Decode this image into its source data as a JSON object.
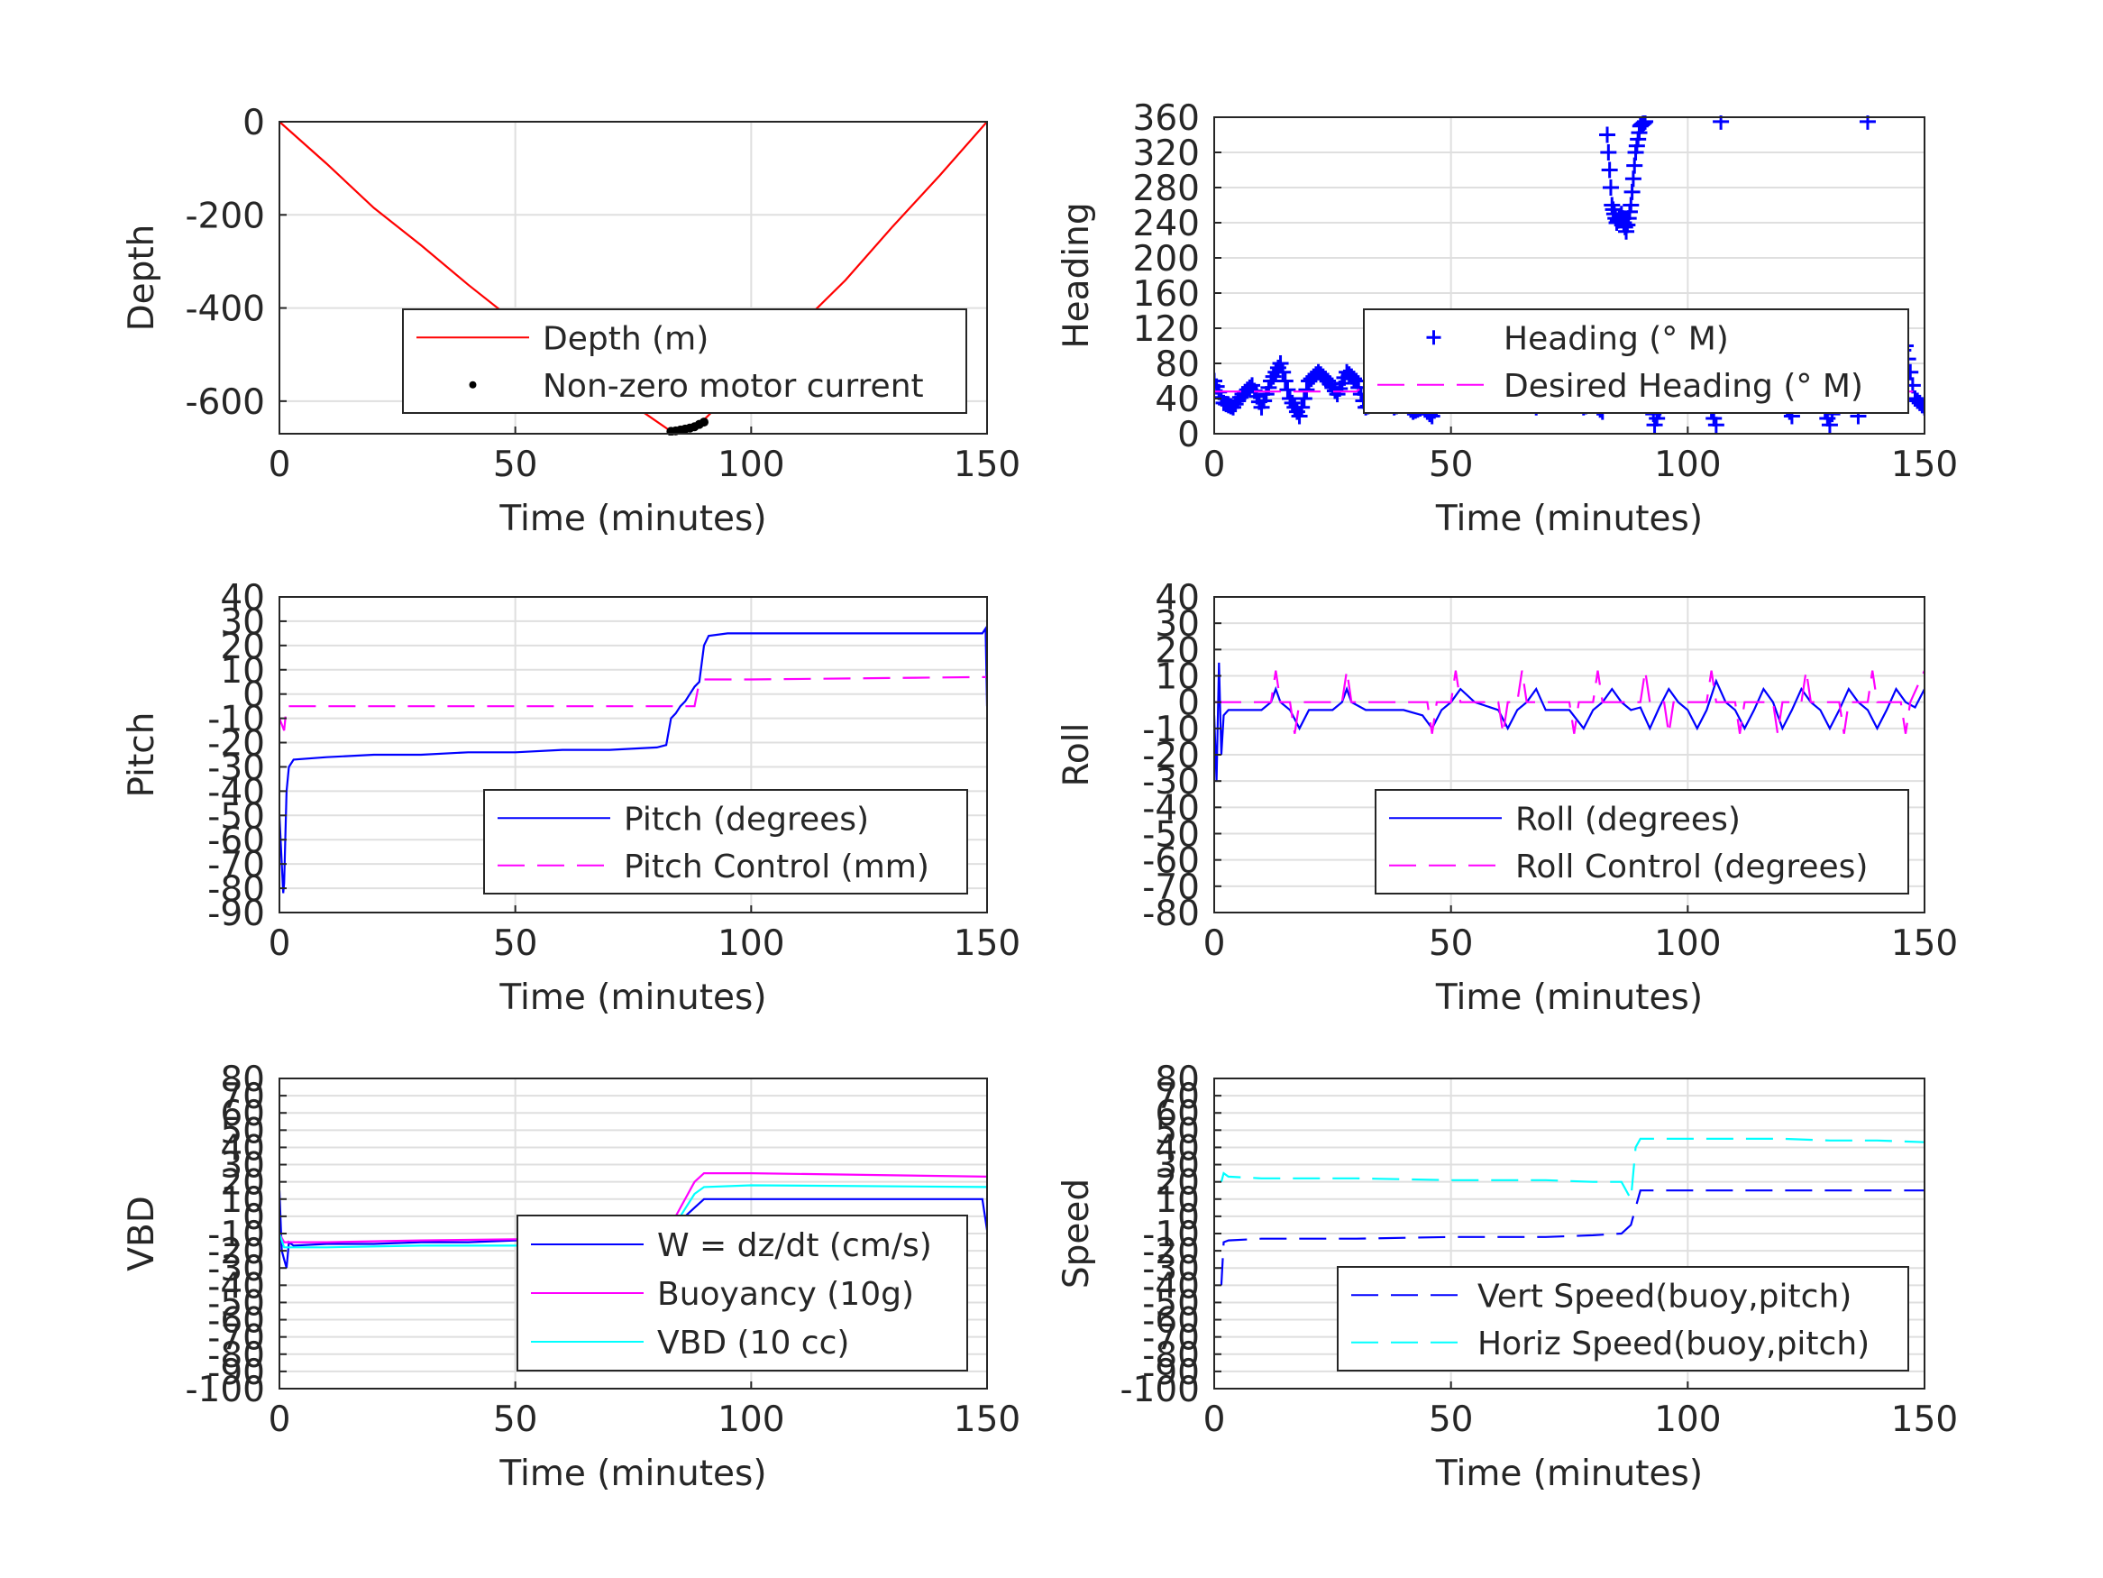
{
  "chart_data": [
    {
      "type": "line",
      "xlabel": "Time (minutes)",
      "ylabel": "Depth",
      "xlim": [
        0,
        150
      ],
      "ylim": [
        -670,
        0
      ],
      "xticks": [
        0,
        50,
        100,
        150
      ],
      "yticks": [
        0,
        -200,
        -400,
        -600
      ],
      "yticklabels": [
        "0",
        "-200",
        "-400",
        "-600"
      ],
      "grid": true,
      "legend": "lower-right",
      "series": [
        {
          "name": "Depth (m)",
          "color": "#ff0000",
          "style": "solid",
          "x": [
            0,
            10,
            20,
            30,
            40,
            50,
            60,
            70,
            78,
            83,
            86,
            90,
            100,
            110,
            120,
            130,
            140,
            150
          ],
          "y": [
            0,
            -90,
            -185,
            -265,
            -350,
            -430,
            -505,
            -575,
            -630,
            -665,
            -660,
            -640,
            -540,
            -440,
            -340,
            -225,
            -115,
            0
          ]
        },
        {
          "name": "Non-zero motor current",
          "color": "#000000",
          "style": "dots",
          "x": [
            83,
            84,
            85,
            86,
            87,
            88,
            89,
            90
          ],
          "y": [
            -665,
            -664,
            -662,
            -660,
            -658,
            -655,
            -650,
            -645
          ]
        }
      ]
    },
    {
      "type": "scatter",
      "xlabel": "Time (minutes)",
      "ylabel": "Heading",
      "xlim": [
        0,
        150
      ],
      "ylim": [
        0,
        360
      ],
      "xticks": [
        0,
        50,
        100,
        150
      ],
      "yticks": [
        0,
        40,
        80,
        120,
        160,
        200,
        240,
        280,
        320,
        360
      ],
      "yticklabels": [
        "0",
        "40",
        "80",
        "120",
        "160",
        "200",
        "240",
        "280",
        "320",
        "360"
      ],
      "grid": true,
      "legend": "right",
      "series": [
        {
          "name": "Heading (° M)",
          "color": "#0000ff",
          "style": "plus",
          "x": [
            0,
            2,
            4,
            6,
            8,
            10,
            12,
            14,
            16,
            18,
            20,
            22,
            24,
            26,
            28,
            30,
            32,
            34,
            36,
            38,
            40,
            42,
            44,
            46,
            48,
            50,
            52,
            54,
            56,
            58,
            60,
            62,
            64,
            66,
            68,
            70,
            72,
            74,
            76,
            78,
            80,
            82,
            83,
            84,
            85,
            86,
            87,
            88,
            89,
            90,
            91,
            92,
            93,
            95,
            97,
            99,
            100,
            102,
            104,
            106,
            107,
            110,
            112,
            114,
            116,
            118,
            120,
            122,
            124,
            126,
            128,
            130,
            132,
            134,
            136,
            138,
            140,
            142,
            144,
            146,
            148,
            150
          ],
          "y": [
            60,
            35,
            30,
            45,
            55,
            30,
            60,
            80,
            40,
            20,
            60,
            70,
            60,
            45,
            70,
            60,
            30,
            35,
            40,
            30,
            35,
            25,
            30,
            20,
            45,
            60,
            70,
            50,
            40,
            45,
            35,
            60,
            70,
            40,
            30,
            75,
            55,
            45,
            40,
            30,
            35,
            25,
            340,
            260,
            240,
            250,
            230,
            260,
            320,
            350,
            355,
            60,
            10,
            40,
            80,
            120,
            130,
            80,
            40,
            10,
            355,
            100,
            40,
            60,
            120,
            80,
            40,
            20,
            80,
            100,
            40,
            10,
            60,
            80,
            20,
            355,
            40,
            60,
            80,
            100,
            40,
            30
          ]
        },
        {
          "name": "Desired Heading (° M)",
          "color": "#ff00ff",
          "style": "dash",
          "x": [
            0,
            30,
            31,
            80,
            81,
            150
          ],
          "y": [
            48,
            48,
            52,
            52,
            48,
            48
          ]
        }
      ]
    },
    {
      "type": "line",
      "xlabel": "Time (minutes)",
      "ylabel": "Pitch",
      "xlim": [
        0,
        150
      ],
      "ylim": [
        -90,
        40
      ],
      "xticks": [
        0,
        50,
        100,
        150
      ],
      "yticks": [
        40,
        30,
        20,
        10,
        0,
        -10,
        -20,
        -30,
        -40,
        -50,
        -60,
        -70,
        -80,
        -90
      ],
      "yticklabels": [
        "40",
        "30",
        "20",
        "10",
        "0",
        "-10",
        "-20",
        "-30",
        "-40",
        "-50",
        "-60",
        "-70",
        "-80",
        "-90"
      ],
      "grid": true,
      "legend": "lower-right",
      "series": [
        {
          "name": "Pitch (degrees)",
          "color": "#0000ff",
          "style": "solid",
          "x": [
            0,
            0.5,
            0.8,
            1,
            1.5,
            2,
            3,
            10,
            20,
            30,
            40,
            50,
            60,
            70,
            80,
            82,
            83,
            84,
            85,
            86,
            87,
            88,
            89,
            90,
            91,
            95,
            100,
            110,
            120,
            130,
            140,
            149,
            149.7,
            150
          ],
          "y": [
            -50,
            -70,
            -82,
            -78,
            -40,
            -30,
            -27,
            -26,
            -25,
            -25,
            -24,
            -24,
            -23,
            -23,
            -22,
            -21,
            -10,
            -8,
            -5,
            -3,
            0,
            3,
            5,
            20,
            24,
            25,
            25,
            25,
            25,
            25,
            25,
            25,
            27,
            -5
          ]
        },
        {
          "name": "Pitch Control (mm)",
          "color": "#ff00ff",
          "style": "dash",
          "x": [
            0,
            1,
            1.5,
            2,
            80,
            88,
            89,
            90,
            100,
            150
          ],
          "y": [
            -10,
            -15,
            -5,
            -5,
            -5,
            -5,
            5,
            6,
            6,
            7
          ]
        }
      ]
    },
    {
      "type": "line",
      "xlabel": "Time (minutes)",
      "ylabel": "Roll",
      "xlim": [
        0,
        150
      ],
      "ylim": [
        -80,
        40
      ],
      "xticks": [
        0,
        50,
        100,
        150
      ],
      "yticks": [
        40,
        30,
        20,
        10,
        0,
        -10,
        -20,
        -30,
        -40,
        -50,
        -60,
        -70,
        -80
      ],
      "yticklabels": [
        "40",
        "30",
        "20",
        "10",
        "0",
        "-10",
        "-20",
        "-30",
        "-40",
        "-50",
        "-60",
        "-70",
        "-80"
      ],
      "grid": true,
      "legend": "lower-right",
      "series": [
        {
          "name": "Roll (degrees)",
          "color": "#0000ff",
          "style": "solid",
          "x": [
            0,
            0.5,
            1,
            1.5,
            2,
            3,
            10,
            12,
            13,
            14,
            16,
            18,
            20,
            25,
            27,
            28,
            29,
            32,
            40,
            44,
            46,
            48,
            50,
            52,
            55,
            60,
            62,
            64,
            66,
            68,
            70,
            75,
            78,
            80,
            82,
            84,
            86,
            88,
            90,
            92,
            94,
            96,
            98,
            100,
            102,
            104,
            106,
            108,
            110,
            112,
            114,
            116,
            118,
            120,
            122,
            124,
            126,
            128,
            130,
            132,
            134,
            136,
            138,
            140,
            142,
            144,
            146,
            148,
            150
          ],
          "y": [
            -5,
            -30,
            15,
            -20,
            -5,
            -3,
            -3,
            0,
            5,
            0,
            -3,
            -10,
            -3,
            -3,
            0,
            5,
            0,
            -3,
            -3,
            -5,
            -10,
            -3,
            0,
            5,
            0,
            -3,
            -10,
            -3,
            0,
            5,
            -3,
            -3,
            -10,
            -3,
            0,
            5,
            0,
            -3,
            -2,
            -10,
            -2,
            5,
            0,
            -3,
            -10,
            -3,
            8,
            0,
            -3,
            -10,
            -3,
            5,
            0,
            -10,
            -3,
            5,
            0,
            -3,
            -10,
            -3,
            5,
            0,
            -3,
            -10,
            -3,
            5,
            0,
            -2,
            5
          ]
        },
        {
          "name": "Roll Control (degrees)",
          "color": "#ff00ff",
          "style": "dash",
          "x": [
            0,
            12,
            13,
            14,
            16,
            17,
            18,
            27,
            28,
            29,
            45,
            46,
            47,
            50,
            51,
            52,
            60,
            61,
            62,
            64,
            65,
            66,
            75,
            76,
            77,
            80,
            81,
            82,
            90,
            91,
            92,
            95,
            96,
            97,
            104,
            105,
            106,
            110,
            111,
            112,
            118,
            119,
            120,
            124,
            125,
            126,
            132,
            133,
            134,
            138,
            139,
            140,
            145,
            146,
            147,
            150
          ],
          "y": [
            0,
            0,
            12,
            0,
            0,
            -12,
            0,
            0,
            12,
            0,
            0,
            -12,
            0,
            0,
            12,
            0,
            0,
            -12,
            0,
            0,
            12,
            0,
            0,
            -12,
            0,
            0,
            12,
            0,
            0,
            12,
            0,
            0,
            -12,
            0,
            0,
            12,
            0,
            0,
            -12,
            0,
            0,
            -12,
            0,
            0,
            12,
            0,
            0,
            -12,
            0,
            0,
            12,
            0,
            0,
            -12,
            0,
            12
          ]
        }
      ]
    },
    {
      "type": "line",
      "xlabel": "Time (minutes)",
      "ylabel": "VBD",
      "xlim": [
        0,
        150
      ],
      "ylim": [
        -100,
        80
      ],
      "xticks": [
        0,
        50,
        100,
        150
      ],
      "yticks": [
        80,
        70,
        60,
        50,
        40,
        30,
        20,
        10,
        0,
        -10,
        -20,
        -30,
        -40,
        -50,
        -60,
        -70,
        -80,
        -90,
        -100
      ],
      "yticklabels": [
        "80",
        "70",
        "60",
        "50",
        "40",
        "30",
        "20",
        "10",
        "0",
        "-10",
        "-20",
        "-30",
        "-40",
        "-50",
        "-60",
        "-70",
        "-80",
        "-90",
        "-100"
      ],
      "grid": true,
      "legend": "lower-right",
      "series": [
        {
          "name": "W = dz/dt (cm/s)",
          "color": "#0000ff",
          "style": "solid",
          "x": [
            0,
            0.5,
            1,
            1.5,
            2,
            3,
            10,
            20,
            30,
            40,
            50,
            60,
            70,
            80,
            82,
            84,
            86,
            88,
            90,
            100,
            110,
            120,
            130,
            140,
            149,
            150
          ],
          "y": [
            15,
            -20,
            -25,
            -30,
            -15,
            -17,
            -16,
            -16,
            -15,
            -15,
            -14,
            -14,
            -14,
            -13,
            -12,
            -8,
            0,
            5,
            10,
            10,
            10,
            10,
            10,
            10,
            10,
            -8
          ]
        },
        {
          "name": "Buoyancy (10g)",
          "color": "#ff00ff",
          "style": "solid",
          "x": [
            0,
            1,
            2,
            10,
            30,
            60,
            80,
            82,
            88,
            90,
            100,
            150
          ],
          "y": [
            -10,
            -15,
            -15,
            -15,
            -14,
            -13,
            -12,
            -10,
            20,
            25,
            25,
            23
          ]
        },
        {
          "name": "VBD (10 cc)",
          "color": "#00ffff",
          "style": "solid",
          "x": [
            0,
            1,
            2,
            10,
            30,
            60,
            80,
            82,
            88,
            90,
            100,
            150
          ],
          "y": [
            -10,
            -18,
            -18,
            -18,
            -17,
            -17,
            -16,
            -13,
            13,
            17,
            18,
            17
          ]
        }
      ]
    },
    {
      "type": "line",
      "xlabel": "Time (minutes)",
      "ylabel": "Speed",
      "xlim": [
        0,
        150
      ],
      "ylim": [
        -100,
        80
      ],
      "xticks": [
        0,
        50,
        100,
        150
      ],
      "yticks": [
        80,
        70,
        60,
        50,
        40,
        30,
        20,
        10,
        0,
        -10,
        -20,
        -30,
        -40,
        -50,
        -60,
        -70,
        -80,
        -90,
        -100
      ],
      "yticklabels": [
        "80",
        "70",
        "60",
        "50",
        "40",
        "30",
        "20",
        "10",
        "0",
        "-10",
        "-20",
        "-30",
        "-40",
        "-50",
        "-60",
        "-70",
        "-80",
        "-90",
        "-100"
      ],
      "grid": true,
      "legend": "lower-right",
      "series": [
        {
          "name": "Vert Speed(buoy,pitch)",
          "color": "#0000ff",
          "style": "dash",
          "x": [
            1.5,
            2,
            3,
            10,
            30,
            50,
            70,
            80,
            86,
            88,
            89,
            90,
            100,
            110,
            120,
            130,
            140,
            150
          ],
          "y": [
            -40,
            -15,
            -14,
            -13,
            -13,
            -12,
            -12,
            -11,
            -10,
            -5,
            5,
            15,
            15,
            15,
            15,
            15,
            15,
            15
          ]
        },
        {
          "name": "Horiz Speed(buoy,pitch)",
          "color": "#00ffff",
          "style": "dash",
          "x": [
            1.5,
            2,
            3,
            10,
            30,
            50,
            70,
            80,
            86,
            88,
            89,
            90,
            100,
            110,
            120,
            130,
            140,
            150
          ],
          "y": [
            20,
            25,
            23,
            22,
            22,
            21,
            21,
            20,
            20,
            10,
            40,
            45,
            45,
            45,
            45,
            44,
            44,
            43
          ]
        }
      ]
    }
  ]
}
